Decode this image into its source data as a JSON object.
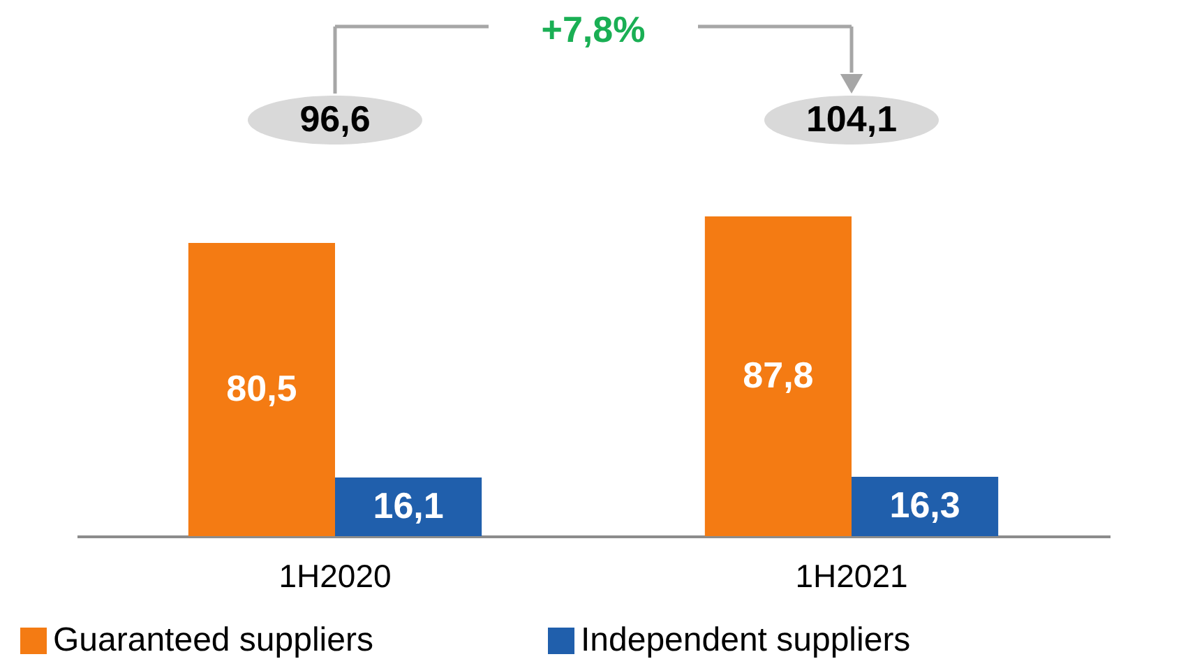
{
  "chart_data": {
    "type": "bar",
    "categories": [
      "1H2020",
      "1H2021"
    ],
    "series": [
      {
        "name": "Guaranteed suppliers",
        "color": "#f47b13",
        "values": [
          80.5,
          87.8
        ],
        "value_labels": [
          "80,5",
          "87,8"
        ]
      },
      {
        "name": "Independent suppliers",
        "color": "#205fac",
        "values": [
          16.1,
          16.3
        ],
        "value_labels": [
          "16,1",
          "16,3"
        ]
      }
    ],
    "totals": [
      "96,6",
      "104,1"
    ],
    "annotations": [
      "+7,8%"
    ],
    "legend": "bottom",
    "tick_labels": "x"
  }
}
